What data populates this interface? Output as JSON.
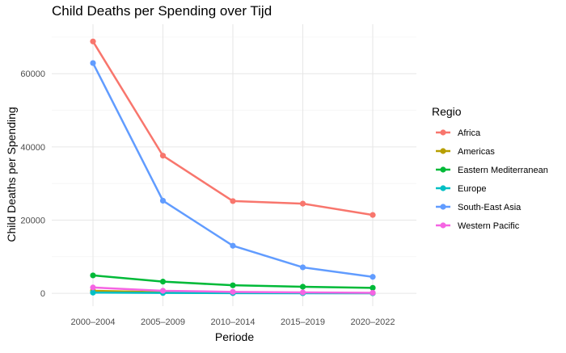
{
  "chart_data": {
    "type": "line",
    "title": "Child Deaths per Spending over Tijd",
    "xlabel": "Periode",
    "ylabel": "Child Deaths per Spending",
    "categories": [
      "2000–2004",
      "2005–2009",
      "2010–2014",
      "2015–2019",
      "2020–2022"
    ],
    "ylim": [
      0,
      70000
    ],
    "yticks": [
      0,
      20000,
      40000,
      60000
    ],
    "grid": true,
    "legend_title": "Regio",
    "legend_position": "right",
    "series": [
      {
        "name": "Africa",
        "color": "#F8766D",
        "values": [
          68800,
          37600,
          25200,
          24500,
          21400
        ]
      },
      {
        "name": "Americas",
        "color": "#B79F00",
        "values": [
          700,
          300,
          200,
          100,
          50
        ]
      },
      {
        "name": "Eastern Mediterranean",
        "color": "#00BA38",
        "values": [
          4900,
          3200,
          2200,
          1800,
          1500
        ]
      },
      {
        "name": "Europe",
        "color": "#00BFC4",
        "values": [
          200,
          100,
          60,
          40,
          30
        ]
      },
      {
        "name": "South-East Asia",
        "color": "#619CFF",
        "values": [
          62900,
          25300,
          13000,
          7100,
          4500
        ]
      },
      {
        "name": "Western Pacific",
        "color": "#F564E3",
        "values": [
          1600,
          700,
          400,
          250,
          150
        ]
      }
    ]
  }
}
